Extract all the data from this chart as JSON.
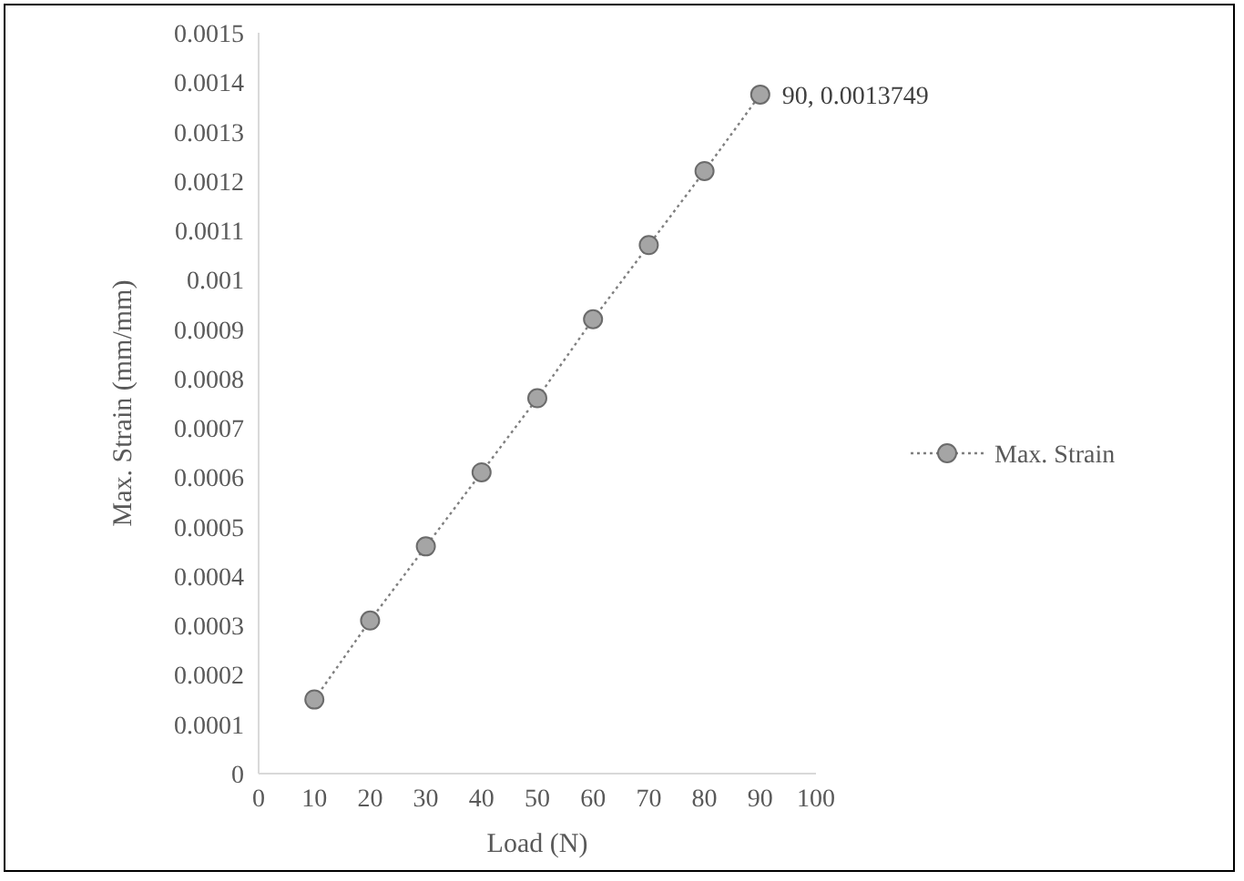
{
  "chart_data": {
    "type": "line",
    "xlabel": "Load (N)",
    "ylabel": "Max. Strain (mm/mm)",
    "x": [
      10,
      20,
      30,
      40,
      50,
      60,
      70,
      80,
      90
    ],
    "series": [
      {
        "name": "Max. Strain",
        "color": "#a5a5a5",
        "values": [
          0.00015,
          0.00031,
          0.00046,
          0.00061,
          0.00076,
          0.00092,
          0.00107,
          0.00122,
          0.0013749
        ],
        "value_labels": [
          null,
          null,
          null,
          null,
          null,
          null,
          null,
          null,
          "90, 0.0013749"
        ],
        "line_style": "dotted"
      }
    ],
    "xlim": [
      0,
      100
    ],
    "xticks": [
      0,
      10,
      20,
      30,
      40,
      50,
      60,
      70,
      80,
      90,
      100
    ],
    "ylim": [
      0,
      0.0015
    ],
    "yticks": [
      0,
      0.0001,
      0.0002,
      0.0003,
      0.0004,
      0.0005,
      0.0006,
      0.0007,
      0.0008,
      0.0009,
      0.001,
      0.0011,
      0.0012,
      0.0013,
      0.0014,
      0.0015
    ],
    "marker": "circle",
    "legend": "right",
    "grid": false
  }
}
